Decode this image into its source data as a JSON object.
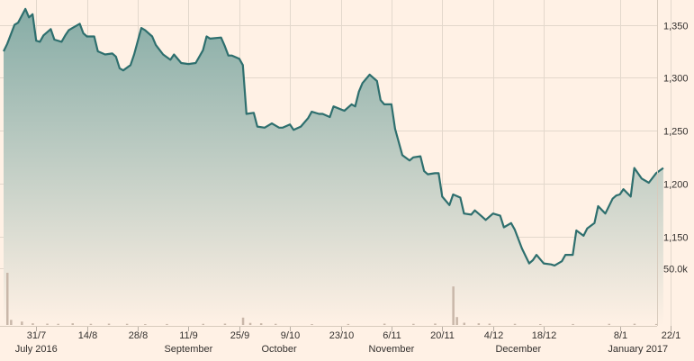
{
  "chart_data": {
    "type": "line",
    "title": "",
    "xlabel": "",
    "ylabel": "",
    "x_range": [
      "2016-07-22",
      "2017-01-22"
    ],
    "ylim": [
      1100,
      1370
    ],
    "y_ticks": [
      {
        "value": 1350,
        "label": "1,350"
      },
      {
        "value": 1300,
        "label": "1,300"
      },
      {
        "value": 1250,
        "label": "1,250"
      },
      {
        "value": 1200,
        "label": "1,200"
      },
      {
        "value": 1150,
        "label": "1,150"
      }
    ],
    "volume_max_label": "50.0k",
    "volume_max": 50000,
    "x_ticks": [
      {
        "date": "2016-07-31",
        "label": "31/7"
      },
      {
        "date": "2016-08-14",
        "label": "14/8"
      },
      {
        "date": "2016-08-28",
        "label": "28/8"
      },
      {
        "date": "2016-09-11",
        "label": "11/9"
      },
      {
        "date": "2016-09-25",
        "label": "25/9"
      },
      {
        "date": "2016-10-09",
        "label": "9/10"
      },
      {
        "date": "2016-10-23",
        "label": "23/10"
      },
      {
        "date": "2016-11-06",
        "label": "6/11"
      },
      {
        "date": "2016-11-20",
        "label": "20/11"
      },
      {
        "date": "2016-12-04",
        "label": "4/12"
      },
      {
        "date": "2016-12-18",
        "label": "18/12"
      },
      {
        "date": "2017-01-08",
        "label": "8/1"
      },
      {
        "date": "2017-01-22",
        "label": "22/1"
      }
    ],
    "month_labels": [
      {
        "date": "2016-07-31",
        "label": "July 2016"
      },
      {
        "date": "2016-09-11",
        "label": "September"
      },
      {
        "date": "2016-10-06",
        "label": "October"
      },
      {
        "date": "2016-11-06",
        "label": "November"
      },
      {
        "date": "2016-12-11",
        "label": "December"
      },
      {
        "date": "2017-01-13",
        "label": "January 2017"
      }
    ],
    "series": [
      {
        "points": [
          [
            "2016-07-22",
            1325
          ],
          [
            "2016-07-23",
            1332
          ],
          [
            "2016-07-25",
            1350
          ],
          [
            "2016-07-26",
            1352
          ],
          [
            "2016-07-28",
            1365
          ],
          [
            "2016-07-29",
            1357
          ],
          [
            "2016-07-30",
            1360
          ],
          [
            "2016-07-31",
            1335
          ],
          [
            "2016-08-01",
            1334
          ],
          [
            "2016-08-02",
            1340
          ],
          [
            "2016-08-04",
            1346
          ],
          [
            "2016-08-05",
            1336
          ],
          [
            "2016-08-07",
            1334
          ],
          [
            "2016-08-08",
            1340
          ],
          [
            "2016-08-09",
            1345
          ],
          [
            "2016-08-10",
            1347
          ],
          [
            "2016-08-12",
            1351
          ],
          [
            "2016-08-13",
            1342
          ],
          [
            "2016-08-14",
            1339
          ],
          [
            "2016-08-16",
            1339
          ],
          [
            "2016-08-17",
            1325
          ],
          [
            "2016-08-19",
            1322
          ],
          [
            "2016-08-21",
            1323
          ],
          [
            "2016-08-22",
            1320
          ],
          [
            "2016-08-23",
            1309
          ],
          [
            "2016-08-24",
            1307
          ],
          [
            "2016-08-26",
            1312
          ],
          [
            "2016-08-27",
            1322
          ],
          [
            "2016-08-29",
            1347
          ],
          [
            "2016-08-30",
            1345
          ],
          [
            "2016-09-01",
            1339
          ],
          [
            "2016-09-02",
            1331
          ],
          [
            "2016-09-04",
            1322
          ],
          [
            "2016-09-06",
            1317
          ],
          [
            "2016-09-07",
            1322
          ],
          [
            "2016-09-09",
            1314
          ],
          [
            "2016-09-11",
            1313
          ],
          [
            "2016-09-13",
            1314
          ],
          [
            "2016-09-15",
            1326
          ],
          [
            "2016-09-16",
            1339
          ],
          [
            "2016-09-17",
            1337
          ],
          [
            "2016-09-20",
            1338
          ],
          [
            "2016-09-21",
            1330
          ],
          [
            "2016-09-22",
            1321
          ],
          [
            "2016-09-23",
            1321
          ],
          [
            "2016-09-25",
            1318
          ],
          [
            "2016-09-26",
            1312
          ],
          [
            "2016-09-27",
            1266
          ],
          [
            "2016-09-29",
            1267
          ],
          [
            "2016-09-30",
            1254
          ],
          [
            "2016-10-02",
            1253
          ],
          [
            "2016-10-04",
            1257
          ],
          [
            "2016-10-06",
            1253
          ],
          [
            "2016-10-07",
            1253
          ],
          [
            "2016-10-09",
            1256
          ],
          [
            "2016-10-10",
            1251
          ],
          [
            "2016-10-12",
            1254
          ],
          [
            "2016-10-14",
            1262
          ],
          [
            "2016-10-15",
            1268
          ],
          [
            "2016-10-17",
            1266
          ],
          [
            "2016-10-18",
            1266
          ],
          [
            "2016-10-20",
            1263
          ],
          [
            "2016-10-21",
            1273
          ],
          [
            "2016-10-24",
            1269
          ],
          [
            "2016-10-26",
            1275
          ],
          [
            "2016-10-27",
            1273
          ],
          [
            "2016-10-28",
            1287
          ],
          [
            "2016-10-29",
            1295
          ],
          [
            "2016-10-31",
            1303
          ],
          [
            "2016-11-02",
            1297
          ],
          [
            "2016-11-03",
            1279
          ],
          [
            "2016-11-04",
            1275
          ],
          [
            "2016-11-06",
            1275
          ],
          [
            "2016-11-07",
            1252
          ],
          [
            "2016-11-09",
            1227
          ],
          [
            "2016-11-11",
            1222
          ],
          [
            "2016-11-12",
            1225
          ],
          [
            "2016-11-14",
            1226
          ],
          [
            "2016-11-15",
            1212
          ],
          [
            "2016-11-16",
            1209
          ],
          [
            "2016-11-18",
            1210
          ],
          [
            "2016-11-19",
            1210
          ],
          [
            "2016-11-20",
            1188
          ],
          [
            "2016-11-22",
            1180
          ],
          [
            "2016-11-23",
            1190
          ],
          [
            "2016-11-25",
            1187
          ],
          [
            "2016-11-26",
            1172
          ],
          [
            "2016-11-28",
            1171
          ],
          [
            "2016-11-29",
            1175
          ],
          [
            "2016-12-01",
            1169
          ],
          [
            "2016-12-02",
            1166
          ],
          [
            "2016-12-04",
            1172
          ],
          [
            "2016-12-06",
            1170
          ],
          [
            "2016-12-07",
            1159
          ],
          [
            "2016-12-09",
            1163
          ],
          [
            "2016-12-10",
            1157
          ],
          [
            "2016-12-12",
            1139
          ],
          [
            "2016-12-14",
            1125
          ],
          [
            "2016-12-15",
            1128
          ],
          [
            "2016-12-16",
            1133
          ],
          [
            "2016-12-18",
            1125
          ],
          [
            "2016-12-20",
            1124
          ],
          [
            "2016-12-21",
            1123
          ],
          [
            "2016-12-23",
            1127
          ],
          [
            "2016-12-24",
            1133
          ],
          [
            "2016-12-26",
            1133
          ],
          [
            "2016-12-27",
            1156
          ],
          [
            "2016-12-29",
            1151
          ],
          [
            "2016-12-30",
            1158
          ],
          [
            "2017-01-01",
            1163
          ],
          [
            "2017-01-02",
            1179
          ],
          [
            "2017-01-04",
            1172
          ],
          [
            "2017-01-06",
            1186
          ],
          [
            "2017-01-07",
            1189
          ],
          [
            "2017-01-08",
            1190
          ],
          [
            "2017-01-09",
            1195
          ],
          [
            "2017-01-11",
            1188
          ],
          [
            "2017-01-12",
            1215
          ],
          [
            "2017-01-14",
            1205
          ],
          [
            "2017-01-16",
            1201
          ],
          [
            "2017-01-18",
            1210
          ],
          [
            "2017-01-20",
            1215
          ]
        ]
      }
    ],
    "volume": [
      [
        "2016-07-23",
        46000
      ],
      [
        "2016-07-24",
        4500
      ],
      [
        "2016-07-27",
        3000
      ],
      [
        "2016-07-30",
        1500
      ],
      [
        "2016-08-03",
        1200
      ],
      [
        "2016-08-06",
        1000
      ],
      [
        "2016-08-10",
        1500
      ],
      [
        "2016-08-15",
        1000
      ],
      [
        "2016-08-20",
        1200
      ],
      [
        "2016-08-25",
        1000
      ],
      [
        "2016-08-30",
        800
      ],
      [
        "2016-09-05",
        900
      ],
      [
        "2016-09-15",
        1000
      ],
      [
        "2016-09-21",
        1200
      ],
      [
        "2016-09-26",
        6500
      ],
      [
        "2016-09-28",
        1800
      ],
      [
        "2016-10-01",
        1500
      ],
      [
        "2016-10-05",
        1000
      ],
      [
        "2016-10-15",
        800
      ],
      [
        "2016-10-25",
        900
      ],
      [
        "2016-11-04",
        1200
      ],
      [
        "2016-11-12",
        1000
      ],
      [
        "2016-11-18",
        1300
      ],
      [
        "2016-11-23",
        34000
      ],
      [
        "2016-11-24",
        7000
      ],
      [
        "2016-11-26",
        2000
      ],
      [
        "2016-11-30",
        1500
      ],
      [
        "2016-12-03",
        1200
      ],
      [
        "2016-12-10",
        1000
      ],
      [
        "2016-12-17",
        800
      ],
      [
        "2016-12-26",
        900
      ],
      [
        "2017-01-05",
        1000
      ],
      [
        "2017-01-12",
        1100
      ],
      [
        "2017-01-18",
        900
      ]
    ],
    "colors": {
      "line": "#2e6f6e",
      "fill_top": "#86aca6",
      "fill_bottom": "#fff1e5",
      "volume": "#c9b7a9",
      "background": "#fff1e5",
      "grid": "#e3d8cc",
      "text": "#33302e"
    },
    "grid": true,
    "y_axis_side": "right"
  }
}
